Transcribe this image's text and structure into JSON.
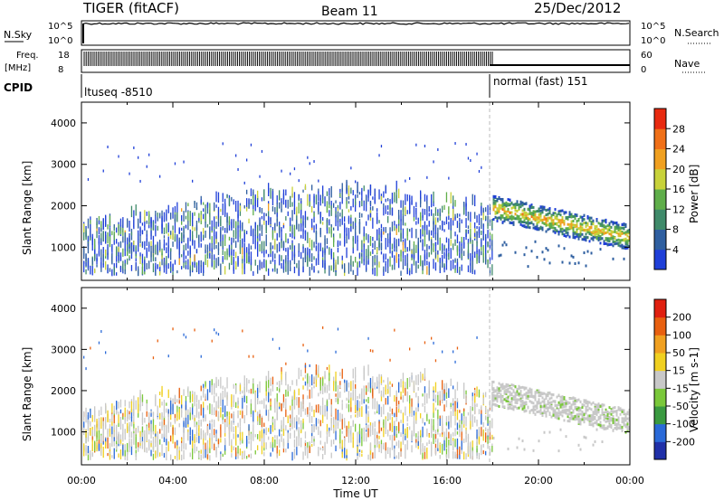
{
  "header": {
    "radar": "TIGER (fitACF)",
    "beam": "Beam 11",
    "date": "25/Dec/2012"
  },
  "noise_panel": {
    "left_label": "N.Sky",
    "right_label": "N.Search",
    "left_ticks": [
      "10^5",
      "10^0"
    ],
    "right_ticks": [
      "10^5",
      "10^0"
    ]
  },
  "freq_panel": {
    "left_label_1": "Freq.",
    "left_label_2": "[MHz]",
    "right_label": "Nave",
    "left_ticks": [
      "18",
      "8"
    ],
    "right_ticks": [
      "60",
      "0"
    ]
  },
  "cpid_panel": {
    "label": "CPID",
    "segments": [
      {
        "text": "ltuseq -8510",
        "start_hour": 0,
        "end_hour": 18
      },
      {
        "text": "normal (fast) 151",
        "start_hour": 18,
        "end_hour": 24
      }
    ]
  },
  "colors": {
    "power_scale": [
      "#1f3fd8",
      "#2f5fa0",
      "#3f8a6a",
      "#5fae4a",
      "#c8d23a",
      "#f0a020",
      "#f07018",
      "#e82a10",
      "#d01010"
    ],
    "velocity_scale": [
      "#2030a8",
      "#2a6ad8",
      "#3a9a40",
      "#7ac83a",
      "#c8c8c8",
      "#f0d020",
      "#f0a020",
      "#e86010",
      "#e02010"
    ]
  },
  "chart_data": [
    {
      "type": "heatmap",
      "name": "power",
      "xlabel": "Time UT",
      "ylabel": "Slant Range [km]",
      "xlim": [
        0,
        24
      ],
      "ylim": [
        200,
        4500
      ],
      "x_ticks": [
        "00:00",
        "04:00",
        "08:00",
        "12:00",
        "16:00",
        "20:00",
        "00:00"
      ],
      "y_ticks": [
        "1000",
        "2000",
        "3000",
        "4000"
      ],
      "colorbar": {
        "label": "Power [dB]",
        "range": [
          0,
          32
        ],
        "ticks": [
          "4",
          "8",
          "12",
          "16",
          "20",
          "24",
          "28"
        ]
      },
      "mode_change_hour": 18
    },
    {
      "type": "heatmap",
      "name": "velocity",
      "xlabel": "Time UT",
      "ylabel": "Slant Range [km]",
      "xlim": [
        0,
        24
      ],
      "ylim": [
        200,
        4500
      ],
      "x_ticks": [
        "00:00",
        "04:00",
        "08:00",
        "12:00",
        "16:00",
        "20:00",
        "00:00"
      ],
      "y_ticks": [
        "1000",
        "2000",
        "3000",
        "4000"
      ],
      "colorbar": {
        "label": "Velocity [m s-1]",
        "range": [
          -250,
          250
        ],
        "ticks": [
          "200",
          "100",
          "50",
          "15",
          "-15",
          "-50",
          "-100",
          "-200"
        ]
      },
      "mode_change_hour": 18
    }
  ],
  "footer": {
    "xlabel": "Time UT",
    "x_ticks": [
      "00:00",
      "04:00",
      "08:00",
      "12:00",
      "16:00",
      "20:00",
      "00:00"
    ]
  }
}
